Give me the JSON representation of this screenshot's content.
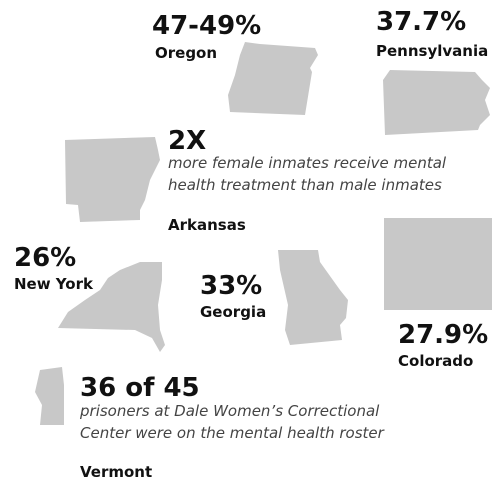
{
  "states": [
    {
      "stat": "47-49%",
      "name": "Oregon"
    },
    {
      "stat": "37.7%",
      "name": "Pennsylvania"
    },
    {
      "stat": "2X",
      "name": "Arkansas",
      "description": [
        "more female inmates receive mental",
        "health treatment than male inmates"
      ]
    },
    {
      "stat": "26%",
      "name": "New York"
    },
    {
      "stat": "33%",
      "name": "Georgia"
    },
    {
      "stat": "27.9%",
      "name": "Colorado"
    },
    {
      "stat": "36 of 45",
      "name": "Vermont",
      "description": [
        "prisoners at Dale Women’s Correctional",
        "Center were on the mental health roster"
      ]
    }
  ]
}
